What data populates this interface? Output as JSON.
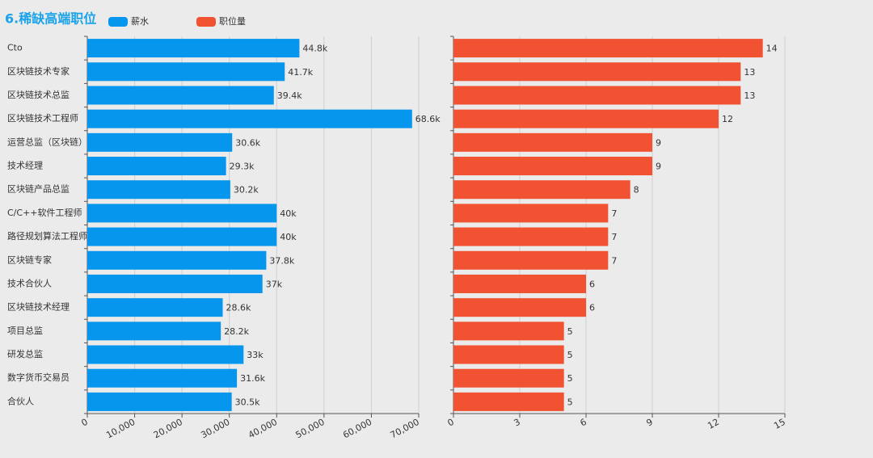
{
  "chart_data": [
    {
      "type": "barh",
      "title": "6.稀缺高端职位",
      "categories": [
        "Cto",
        "区块链技术专家",
        "区块链技术总监",
        "区块链技术工程师",
        "运营总监（区块链）",
        "技术经理",
        "区块链产品总监",
        "C/C++软件工程师",
        "路径规划算法工程师",
        "区块链专家",
        "技术合伙人",
        "区块链技术经理",
        "项目总监",
        "研发总监",
        "数字货币交易员",
        "合伙人"
      ],
      "series": [
        {
          "name": "薪水",
          "color": "#0796ee",
          "values": [
            44800,
            41700,
            39400,
            68600,
            30600,
            29300,
            30200,
            40000,
            40000,
            37800,
            37000,
            28600,
            28200,
            33000,
            31600,
            30500
          ],
          "value_labels": [
            "44.8k",
            "41.7k",
            "39.4k",
            "68.6k",
            "30.6k",
            "29.3k",
            "30.2k",
            "40k",
            "40k",
            "37.8k",
            "37k",
            "28.6k",
            "28.2k",
            "33k",
            "31.6k",
            "30.5k"
          ]
        }
      ],
      "xlim": [
        0,
        70000
      ],
      "xticks": [
        0,
        {
          "value": 10000,
          "label": "10,000"
        },
        {
          "value": 20000,
          "label": "20,000"
        },
        {
          "value": 30000,
          "label": "30,000"
        },
        {
          "value": 40000,
          "label": "40,000"
        },
        {
          "value": 50000,
          "label": "50,000"
        },
        {
          "value": 60000,
          "label": "60,000"
        },
        {
          "value": 70000,
          "label": "70,000"
        }
      ],
      "grid": true
    },
    {
      "type": "barh",
      "series": [
        {
          "name": "职位量",
          "color": "#f05232",
          "values": [
            14,
            13,
            13,
            12,
            9,
            9,
            8,
            7,
            7,
            7,
            6,
            6,
            5,
            5,
            5,
            5
          ]
        }
      ],
      "xlim": [
        0,
        15
      ],
      "xticks": [
        0,
        3,
        6,
        9,
        12,
        15
      ],
      "grid": true
    }
  ]
}
